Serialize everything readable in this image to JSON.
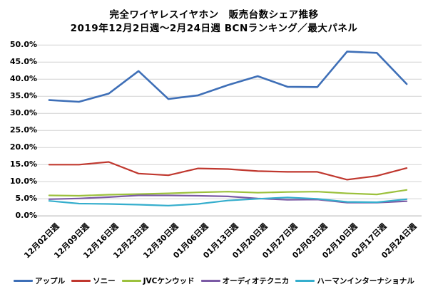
{
  "title": {
    "line1": "完全ワイヤレスイヤホン　販売台数シェア推移",
    "line2": "2019年12月2日週～2月24日週 BCNランキング／最大パネル"
  },
  "chart_data": {
    "type": "line",
    "categories": [
      "12月02日週",
      "12月09日週",
      "12月16日週",
      "12月23日週",
      "12月30日週",
      "01月06日週",
      "01月13日週",
      "01月20日週",
      "01月27日週",
      "02月03日週",
      "02月10日週",
      "02月17日週",
      "02月24日週"
    ],
    "series": [
      {
        "name": "アップル",
        "color": "#3E6FB7",
        "values": [
          33.9,
          33.4,
          35.8,
          42.4,
          34.2,
          35.3,
          38.3,
          40.9,
          37.8,
          37.7,
          48.1,
          47.7,
          38.6
        ]
      },
      {
        "name": "ソニー",
        "color": "#C0382F",
        "values": [
          15.0,
          15.0,
          15.8,
          12.4,
          11.9,
          13.9,
          13.7,
          13.1,
          12.9,
          12.9,
          10.6,
          11.7,
          14.0
        ]
      },
      {
        "name": "JVCケンウッド",
        "color": "#9CC13D",
        "values": [
          6.0,
          5.9,
          6.2,
          6.4,
          6.6,
          6.9,
          7.1,
          6.8,
          7.0,
          7.1,
          6.6,
          6.3,
          7.6
        ]
      },
      {
        "name": "オーディオテクニカ",
        "color": "#7B5AA5",
        "values": [
          4.9,
          5.1,
          5.5,
          6.0,
          6.0,
          5.9,
          5.7,
          5.1,
          4.7,
          4.8,
          3.9,
          3.9,
          4.3
        ]
      },
      {
        "name": "ハーマンインターナショナル",
        "color": "#35AECD",
        "values": [
          4.4,
          3.6,
          3.5,
          3.3,
          3.0,
          3.5,
          4.5,
          5.0,
          5.4,
          5.0,
          4.1,
          4.0,
          4.9
        ]
      }
    ],
    "title": "完全ワイヤレスイヤホン　販売台数シェア推移",
    "subtitle": "2019年12月2日週～2月24日週 BCNランキング／最大パネル",
    "xlabel": "",
    "ylabel": "",
    "ylim": [
      0,
      50
    ],
    "ytick_step": 5,
    "ytick_format": "0.0%",
    "grid": "horizontal",
    "legend_position": "bottom"
  },
  "colors": {
    "gridline": "#D2D2D2",
    "axis_line": "#A8A8A8",
    "text": "#000000",
    "background": "#FFFFFF"
  }
}
